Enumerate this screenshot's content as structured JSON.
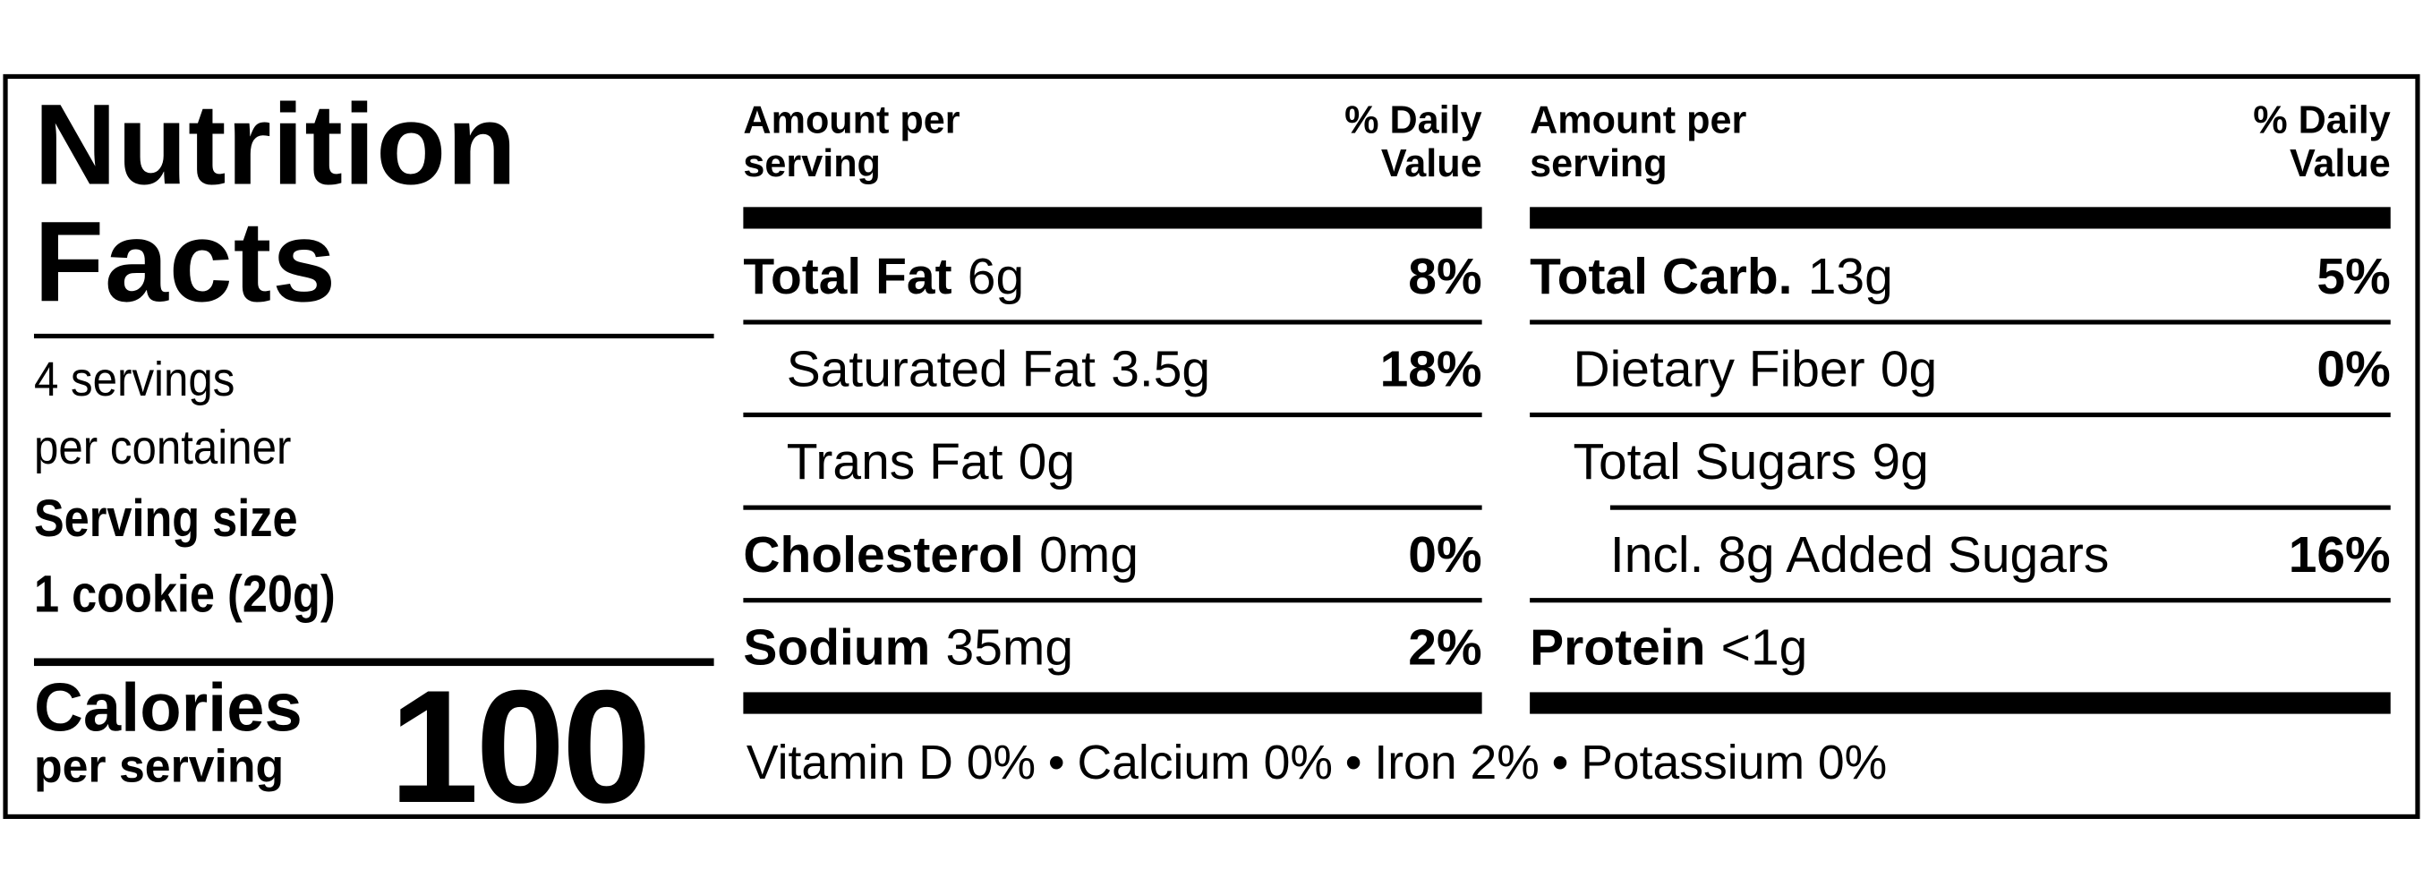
{
  "title": "Nutrition Facts",
  "servings_per_container": [
    "4 servings",
    "per container"
  ],
  "serving_size_label": "Serving size",
  "serving_size": "1 cookie (20g)",
  "calories_label": "Calories",
  "calories_sub": "per serving",
  "calories": 100,
  "columns": [
    {
      "header_amount": "Amount per serving",
      "header_dv": "% Daily Value",
      "rows": [
        {
          "name": "Total Fat",
          "amount": "6g",
          "dv": "8%",
          "bold": true,
          "indent": 0
        },
        {
          "name": "Saturated Fat",
          "amount": "3.5g",
          "dv": "18%",
          "bold": false,
          "indent": 1
        },
        {
          "name": "Trans Fat",
          "amount": "0g",
          "bold": false,
          "indent": 1
        },
        {
          "name": "Cholesterol",
          "amount": "0mg",
          "dv": "0%",
          "bold": true,
          "indent": 0
        },
        {
          "name": "Sodium",
          "amount": "35mg",
          "dv": "2%",
          "bold": true,
          "indent": 0
        }
      ]
    },
    {
      "header_amount": "Amount per serving",
      "header_dv": "% Daily Value",
      "rows": [
        {
          "name": "Total Carb.",
          "amount": "13g",
          "dv": "5%",
          "bold": true,
          "indent": 0
        },
        {
          "name": "Dietary Fiber",
          "amount": "0g",
          "dv": "0%",
          "bold": false,
          "indent": 1
        },
        {
          "name": "Total Sugars",
          "amount": "9g",
          "bold": false,
          "indent": 1
        },
        {
          "name": "Incl. 8g Added Sugars",
          "dv": "16%",
          "bold": false,
          "indent": 2
        },
        {
          "name": "Protein",
          "amount": "<1g",
          "bold": true,
          "indent": 0
        }
      ]
    }
  ],
  "footer": {
    "items": [
      "Vitamin D 0%",
      "Calcium 0%",
      "Iron 2%",
      "Potassium 0%"
    ],
    "separator": "•"
  }
}
